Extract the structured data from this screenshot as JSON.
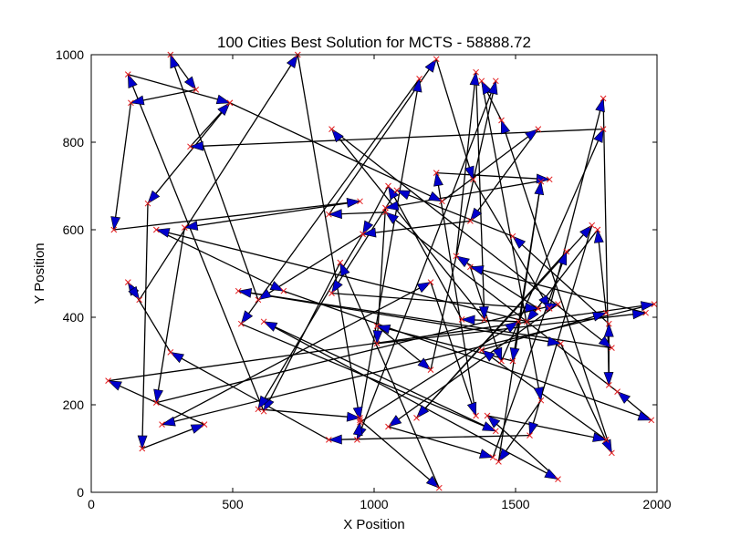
{
  "chart_data": {
    "type": "line",
    "title": "100 Cities Best Solution for MCTS - 58888.72",
    "xlabel": "X Position",
    "ylabel": "Y Position",
    "xlim": [
      0,
      2000
    ],
    "ylim": [
      0,
      1000
    ],
    "xticks": [
      "0",
      "500",
      "1000",
      "1500",
      "2000"
    ],
    "yticks": [
      "0",
      "200",
      "400",
      "600",
      "800",
      "1000"
    ],
    "grid": false,
    "series": [
      {
        "line_color": "#000000",
        "arrow_color": "#0000cc",
        "marker_color": "#e31a1c",
        "marker": "x",
        "tour": [
          [
            730,
            1000
          ],
          [
            950,
            165
          ],
          [
            1230,
            10
          ],
          [
            880,
            525
          ],
          [
            610,
            185
          ],
          [
            130,
            955
          ],
          [
            490,
            890
          ],
          [
            200,
            660
          ],
          [
            180,
            100
          ],
          [
            400,
            155
          ],
          [
            60,
            255
          ],
          [
            1990,
            430
          ],
          [
            250,
            155
          ],
          [
            1200,
            480
          ],
          [
            1360,
            175
          ],
          [
            1220,
            730
          ],
          [
            1620,
            715
          ],
          [
            1040,
            650
          ],
          [
            1010,
            340
          ],
          [
            1960,
            410
          ],
          [
            1340,
            515
          ],
          [
            1450,
            300
          ],
          [
            1810,
            830
          ],
          [
            350,
            790
          ],
          [
            490,
            890
          ],
          [
            1240,
            665
          ],
          [
            1580,
            830
          ],
          [
            1340,
            620
          ],
          [
            960,
            590
          ],
          [
            590,
            190
          ],
          [
            950,
            170
          ],
          [
            1160,
            945
          ],
          [
            530,
            385
          ],
          [
            1430,
            140
          ],
          [
            610,
            390
          ],
          [
            1650,
            30
          ],
          [
            1400,
            175
          ],
          [
            1820,
            120
          ],
          [
            1380,
            325
          ],
          [
            1820,
            410
          ],
          [
            1790,
            600
          ],
          [
            1540,
            390
          ],
          [
            230,
            600
          ],
          [
            680,
            460
          ],
          [
            1980,
            165
          ],
          [
            1860,
            230
          ],
          [
            1040,
            640
          ],
          [
            840,
            635
          ],
          [
            1220,
            990
          ],
          [
            1350,
            715
          ],
          [
            1620,
            420
          ],
          [
            1810,
            900
          ],
          [
            1830,
            245
          ],
          [
            1830,
            385
          ],
          [
            1490,
            585
          ],
          [
            1080,
            690
          ],
          [
            850,
            455
          ],
          [
            1580,
            420
          ],
          [
            1290,
            540
          ],
          [
            1360,
            960
          ],
          [
            1390,
            395
          ],
          [
            850,
            830
          ],
          [
            1840,
            330
          ],
          [
            520,
            460
          ],
          [
            1660,
            340
          ],
          [
            1840,
            90
          ],
          [
            1450,
            850
          ],
          [
            1380,
            940
          ],
          [
            1590,
            210
          ],
          [
            1440,
            70
          ],
          [
            1590,
            710
          ],
          [
            1490,
            300
          ],
          [
            1010,
            380
          ],
          [
            1200,
            280
          ],
          [
            1430,
            940
          ],
          [
            940,
            120
          ],
          [
            950,
            160
          ],
          [
            1510,
            390
          ],
          [
            1310,
            395
          ],
          [
            1050,
            700
          ],
          [
            960,
            590
          ],
          [
            590,
            440
          ],
          [
            280,
            1000
          ],
          [
            370,
            920
          ],
          [
            140,
            890
          ],
          [
            80,
            600
          ],
          [
            950,
            665
          ],
          [
            330,
            605
          ],
          [
            230,
            205
          ],
          [
            1650,
            430
          ],
          [
            1050,
            150
          ],
          [
            1420,
            80
          ],
          [
            1680,
            550
          ],
          [
            1150,
            170
          ],
          [
            1770,
            610
          ],
          [
            1550,
            130
          ],
          [
            840,
            120
          ],
          [
            280,
            320
          ],
          [
            130,
            480
          ],
          [
            170,
            440
          ]
        ]
      }
    ]
  }
}
